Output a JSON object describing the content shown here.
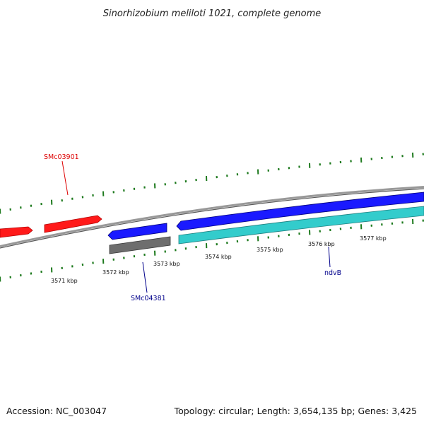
{
  "title": "Sinorhizobium meliloti 1021, complete genome",
  "footer": {
    "accession": "Accession: NC_003047",
    "summary": "Topology: circular; Length: 3,654,135 bp; Genes: 3,425"
  },
  "colors": {
    "backbone": "#8a8a8a",
    "tick_green": "#1e7a1e",
    "gene_red": "#ff1a1a",
    "gene_blue": "#1a1aff",
    "gene_cyan": "#33cccc",
    "gene_gray": "#707070",
    "label_red": "#dd0000",
    "label_blue": "#00008b"
  },
  "scale_labels": [
    "3571 kbp",
    "3572 kbp",
    "3573 kbp",
    "3574 kbp",
    "3575 kbp",
    "3576 kbp",
    "3577 kbp"
  ],
  "gene_labels": {
    "smc03901": "SMc03901",
    "smc04381": "SMc04381",
    "ndvb": "ndvB"
  }
}
